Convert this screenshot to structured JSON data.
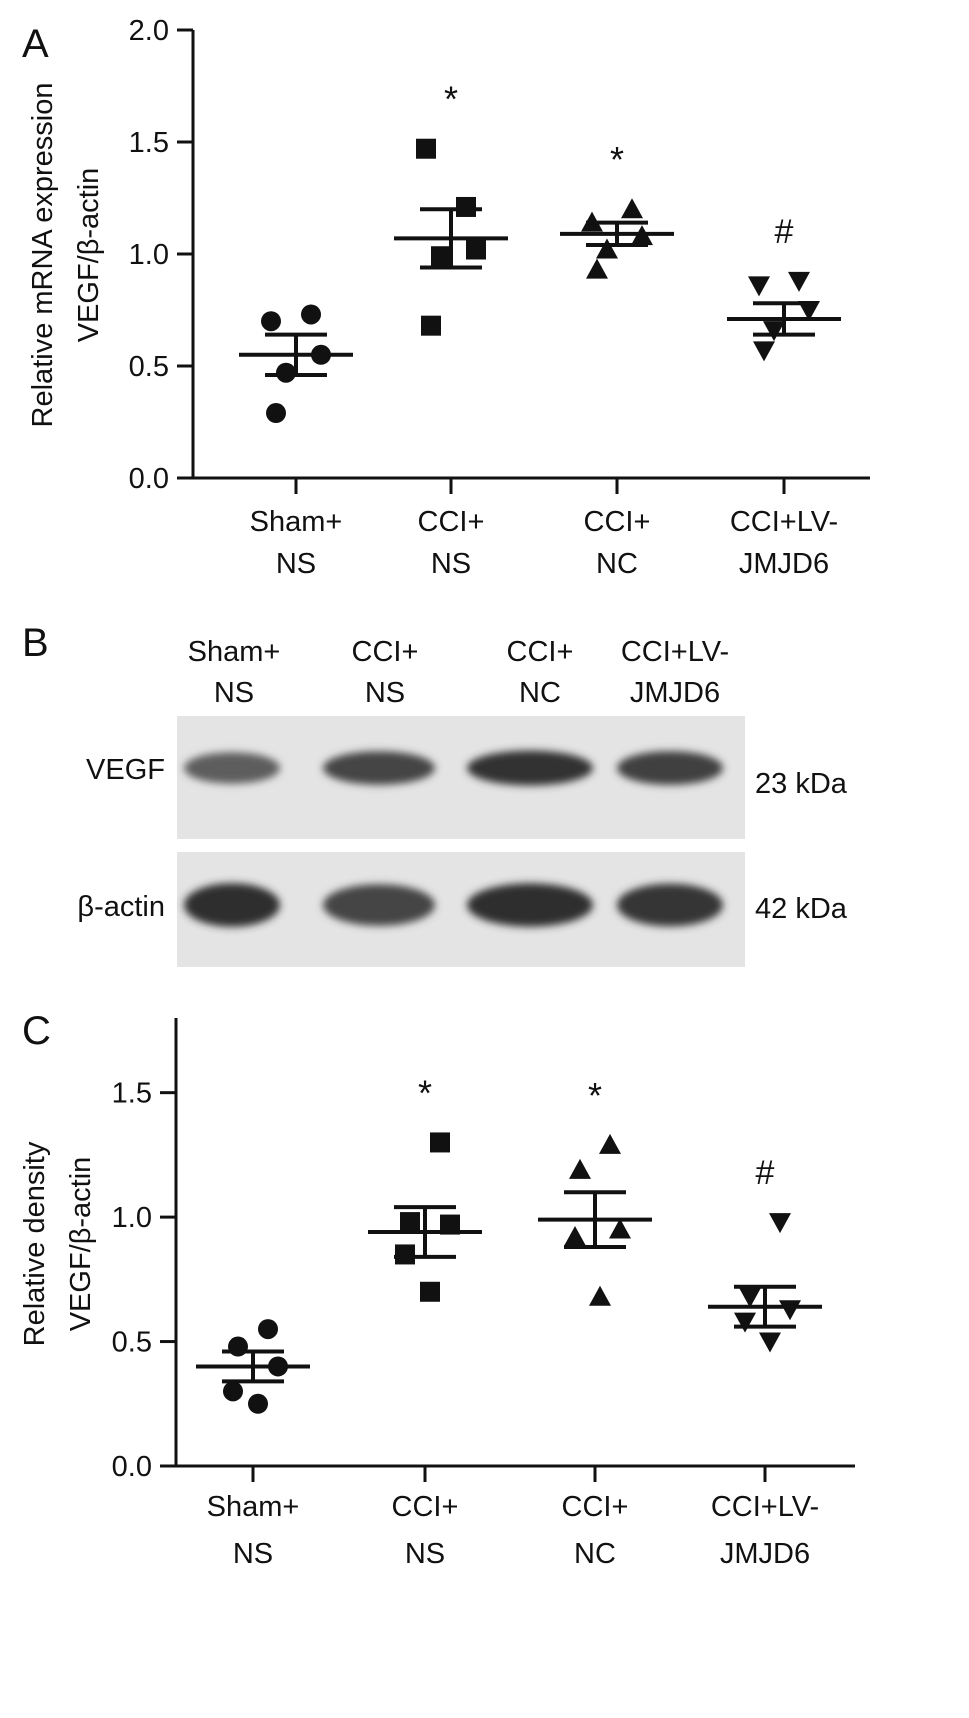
{
  "panels": {
    "a": {
      "letter": "A"
    },
    "b": {
      "letter": "B"
    },
    "c": {
      "letter": "C"
    }
  },
  "western_blot": {
    "lanes": [
      {
        "line1": "Sham+",
        "line2": "NS"
      },
      {
        "line1": "CCI+",
        "line2": "NS"
      },
      {
        "line1": "CCI+",
        "line2": "NC"
      },
      {
        "line1": "CCI+LV-",
        "line2": "JMJD6"
      }
    ],
    "rows": [
      {
        "protein": "VEGF",
        "size": "23 kDa",
        "intensity": [
          0.62,
          0.8,
          0.92,
          0.82
        ]
      },
      {
        "protein": "β-actin",
        "size": "42 kDa",
        "intensity": [
          0.96,
          0.8,
          0.95,
          0.9
        ]
      }
    ]
  },
  "chart_data": [
    {
      "type": "scatter",
      "panel": "A",
      "ylabel_line1": "Relative mRNA expression",
      "ylabel_line2": "VEGF/β-actin",
      "ylim": [
        0,
        2.0
      ],
      "yticks": [
        "0.0",
        "0.5",
        "1.0",
        "1.5",
        "2.0"
      ],
      "categories": [
        {
          "line1": "Sham+",
          "line2": "NS"
        },
        {
          "line1": "CCI+",
          "line2": "NS"
        },
        {
          "line1": "CCI+",
          "line2": "NC"
        },
        {
          "line1": "CCI+LV-",
          "line2": "JMJD6"
        }
      ],
      "groups": [
        {
          "marker": "circle",
          "points": [
            0.7,
            0.73,
            0.55,
            0.47,
            0.29
          ],
          "mean": 0.55,
          "sem": 0.09,
          "annotation": ""
        },
        {
          "marker": "square",
          "points": [
            1.47,
            1.21,
            1.02,
            0.99,
            0.68
          ],
          "mean": 1.07,
          "sem": 0.13,
          "annotation": "*"
        },
        {
          "marker": "triangle-up",
          "points": [
            1.14,
            1.2,
            1.08,
            1.02,
            0.93
          ],
          "mean": 1.09,
          "sem": 0.05,
          "annotation": "*"
        },
        {
          "marker": "triangle-down",
          "points": [
            0.86,
            0.88,
            0.75,
            0.66,
            0.57
          ],
          "mean": 0.71,
          "sem": 0.07,
          "annotation": "#"
        }
      ]
    },
    {
      "type": "scatter",
      "panel": "C",
      "ylabel_line1": "Relative density",
      "ylabel_line2": "VEGF/β-actin",
      "ylim": [
        0,
        1.8
      ],
      "yticks": [
        "0.0",
        "0.5",
        "1.0",
        "1.5"
      ],
      "categories": [
        {
          "line1": "Sham+",
          "line2": "NS"
        },
        {
          "line1": "CCI+",
          "line2": "NS"
        },
        {
          "line1": "CCI+",
          "line2": "NC"
        },
        {
          "line1": "CCI+LV-",
          "line2": "JMJD6"
        }
      ],
      "groups": [
        {
          "marker": "circle",
          "points": [
            0.55,
            0.48,
            0.4,
            0.3,
            0.25
          ],
          "mean": 0.4,
          "sem": 0.06,
          "annotation": ""
        },
        {
          "marker": "square",
          "points": [
            1.3,
            0.98,
            0.97,
            0.85,
            0.7
          ],
          "mean": 0.94,
          "sem": 0.1,
          "annotation": "*"
        },
        {
          "marker": "triangle-up",
          "points": [
            1.29,
            1.19,
            0.95,
            0.92,
            0.68
          ],
          "mean": 0.99,
          "sem": 0.11,
          "annotation": "*"
        },
        {
          "marker": "triangle-down",
          "points": [
            0.98,
            0.68,
            0.63,
            0.58,
            0.5
          ],
          "mean": 0.64,
          "sem": 0.08,
          "annotation": "#"
        }
      ]
    }
  ]
}
